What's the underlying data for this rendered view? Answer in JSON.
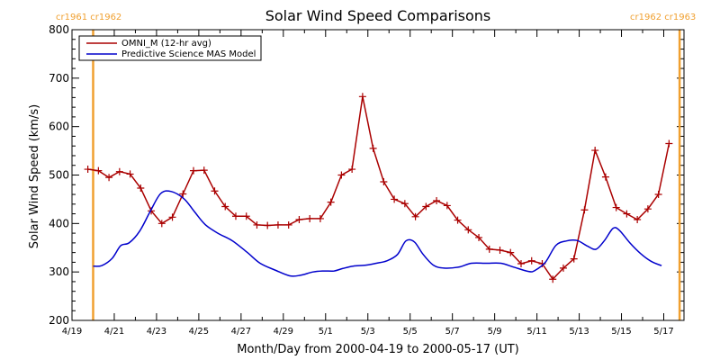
{
  "chart_data": {
    "type": "line",
    "title": "Solar Wind Speed Comparisons",
    "xlabel": "Month/Day from 2000-04-19 to 2000-05-17 (UT)",
    "ylabel": "Solar Wind Speed (km/s)",
    "xlim": [
      "2000-04-19",
      "2000-05-17T23:00"
    ],
    "ylim": [
      200,
      800
    ],
    "yticks": [
      200,
      300,
      400,
      500,
      600,
      700,
      800
    ],
    "xticks": [
      {
        "date": "2000-04-19",
        "label": "4/19"
      },
      {
        "date": "2000-04-21",
        "label": "4/21"
      },
      {
        "date": "2000-04-23",
        "label": "4/23"
      },
      {
        "date": "2000-04-25",
        "label": "4/25"
      },
      {
        "date": "2000-04-27",
        "label": "4/27"
      },
      {
        "date": "2000-04-29",
        "label": "4/29"
      },
      {
        "date": "2000-05-01",
        "label": "5/1"
      },
      {
        "date": "2000-05-03",
        "label": "5/3"
      },
      {
        "date": "2000-05-05",
        "label": "5/5"
      },
      {
        "date": "2000-05-07",
        "label": "5/7"
      },
      {
        "date": "2000-05-09",
        "label": "5/9"
      },
      {
        "date": "2000-05-11",
        "label": "5/11"
      },
      {
        "date": "2000-05-13",
        "label": "5/13"
      },
      {
        "date": "2000-05-15",
        "label": "5/15"
      },
      {
        "date": "2000-05-17",
        "label": "5/17"
      }
    ],
    "carrington_markers": [
      {
        "date": "2000-04-20T00:00",
        "label": "cr1961 cr1962",
        "color": "#f0a030"
      },
      {
        "date": "2000-05-17T18:00",
        "label": "cr1962 cr1963",
        "color": "#f0a030"
      }
    ],
    "legend": {
      "placement": "top-left"
    },
    "grid": false,
    "series": [
      {
        "name": "OMNI_M (12-hr avg)",
        "color": "#aa0000",
        "marker": "plus",
        "points": [
          [
            "2000-04-19T18:00",
            512
          ],
          [
            "2000-04-20T06:00",
            509
          ],
          [
            "2000-04-20T18:00",
            495
          ],
          [
            "2000-04-21T06:00",
            507
          ],
          [
            "2000-04-21T18:00",
            502
          ],
          [
            "2000-04-22T06:00",
            473
          ],
          [
            "2000-04-22T18:00",
            426
          ],
          [
            "2000-04-23T06:00",
            400
          ],
          [
            "2000-04-23T18:00",
            413
          ],
          [
            "2000-04-24T06:00",
            461
          ],
          [
            "2000-04-24T18:00",
            509
          ],
          [
            "2000-04-25T06:00",
            510
          ],
          [
            "2000-04-25T18:00",
            467
          ],
          [
            "2000-04-26T06:00",
            435
          ],
          [
            "2000-04-26T18:00",
            415
          ],
          [
            "2000-04-27T06:00",
            415
          ],
          [
            "2000-04-27T18:00",
            397
          ],
          [
            "2000-04-28T06:00",
            396
          ],
          [
            "2000-04-28T18:00",
            397
          ],
          [
            "2000-04-29T06:00",
            397
          ],
          [
            "2000-04-29T18:00",
            408
          ],
          [
            "2000-04-30T06:00",
            410
          ],
          [
            "2000-04-30T18:00",
            410
          ],
          [
            "2000-05-01T06:00",
            444
          ],
          [
            "2000-05-01T18:00",
            500
          ],
          [
            "2000-05-02T06:00",
            512
          ],
          [
            "2000-05-02T18:00",
            662
          ],
          [
            "2000-05-03T06:00",
            555
          ],
          [
            "2000-05-03T18:00",
            486
          ],
          [
            "2000-05-04T06:00",
            450
          ],
          [
            "2000-05-04T18:00",
            441
          ],
          [
            "2000-05-05T06:00",
            414
          ],
          [
            "2000-05-05T18:00",
            435
          ],
          [
            "2000-05-06T06:00",
            447
          ],
          [
            "2000-05-06T18:00",
            437
          ],
          [
            "2000-05-07T06:00",
            407
          ],
          [
            "2000-05-07T18:00",
            387
          ],
          [
            "2000-05-08T06:00",
            371
          ],
          [
            "2000-05-08T18:00",
            347
          ],
          [
            "2000-05-09T06:00",
            345
          ],
          [
            "2000-05-09T18:00",
            340
          ],
          [
            "2000-05-10T06:00",
            317
          ],
          [
            "2000-05-10T18:00",
            323
          ],
          [
            "2000-05-11T06:00",
            317
          ],
          [
            "2000-05-11T18:00",
            285
          ],
          [
            "2000-05-12T06:00",
            308
          ],
          [
            "2000-05-12T18:00",
            327
          ],
          [
            "2000-05-13T06:00",
            428
          ],
          [
            "2000-05-13T18:00",
            551
          ],
          [
            "2000-05-14T06:00",
            496
          ],
          [
            "2000-05-14T18:00",
            433
          ],
          [
            "2000-05-15T06:00",
            420
          ],
          [
            "2000-05-15T18:00",
            408
          ],
          [
            "2000-05-16T06:00",
            430
          ],
          [
            "2000-05-16T18:00",
            460
          ],
          [
            "2000-05-17T06:00",
            565
          ]
        ]
      },
      {
        "name": "Predictive Science MAS Model",
        "color": "#0000cc",
        "marker": "none",
        "points": [
          [
            "2000-04-20T00:00",
            312
          ],
          [
            "2000-04-20T09:36",
            313
          ],
          [
            "2000-04-20T21:36",
            328
          ],
          [
            "2000-04-21T07:12",
            354
          ],
          [
            "2000-04-21T16:48",
            360
          ],
          [
            "2000-04-22T04:48",
            384
          ],
          [
            "2000-04-22T16:48",
            425
          ],
          [
            "2000-04-23T04:48",
            462
          ],
          [
            "2000-04-23T16:48",
            466
          ],
          [
            "2000-04-24T07:12",
            451
          ],
          [
            "2000-04-24T19:12",
            424
          ],
          [
            "2000-04-25T07:12",
            398
          ],
          [
            "2000-04-25T21:36",
            380
          ],
          [
            "2000-04-26T14:24",
            364
          ],
          [
            "2000-04-27T07:12",
            340
          ],
          [
            "2000-04-27T21:36",
            318
          ],
          [
            "2000-04-28T14:24",
            304
          ],
          [
            "2000-04-29T07:12",
            292
          ],
          [
            "2000-04-29T19:12",
            293
          ],
          [
            "2000-04-30T09:36",
            300
          ],
          [
            "2000-04-30T21:36",
            302
          ],
          [
            "2000-05-01T09:36",
            302
          ],
          [
            "2000-05-01T19:12",
            307
          ],
          [
            "2000-05-02T07:12",
            312
          ],
          [
            "2000-05-02T21:36",
            314
          ],
          [
            "2000-05-03T09:36",
            318
          ],
          [
            "2000-05-03T21:36",
            323
          ],
          [
            "2000-05-04T09:36",
            336
          ],
          [
            "2000-05-04T19:12",
            364
          ],
          [
            "2000-05-05T04:48",
            362
          ],
          [
            "2000-05-05T14:24",
            337
          ],
          [
            "2000-05-06T02:24",
            314
          ],
          [
            "2000-05-06T14:24",
            308
          ],
          [
            "2000-05-07T07:12",
            310
          ],
          [
            "2000-05-07T21:36",
            318
          ],
          [
            "2000-05-08T14:24",
            318
          ],
          [
            "2000-05-09T07:12",
            318
          ],
          [
            "2000-05-09T21:36",
            310
          ],
          [
            "2000-05-10T14:24",
            301
          ],
          [
            "2000-05-10T21:36",
            303
          ],
          [
            "2000-05-11T09:36",
            320
          ],
          [
            "2000-05-11T21:36",
            355
          ],
          [
            "2000-05-12T09:36",
            364
          ],
          [
            "2000-05-12T21:36",
            365
          ],
          [
            "2000-05-13T09:36",
            353
          ],
          [
            "2000-05-13T19:12",
            347
          ],
          [
            "2000-05-14T04:48",
            365
          ],
          [
            "2000-05-14T14:24",
            390
          ],
          [
            "2000-05-14T21:36",
            386
          ],
          [
            "2000-05-15T09:36",
            360
          ],
          [
            "2000-05-15T21:36",
            338
          ],
          [
            "2000-05-16T09:36",
            322
          ],
          [
            "2000-05-16T21:36",
            313
          ]
        ]
      }
    ]
  }
}
